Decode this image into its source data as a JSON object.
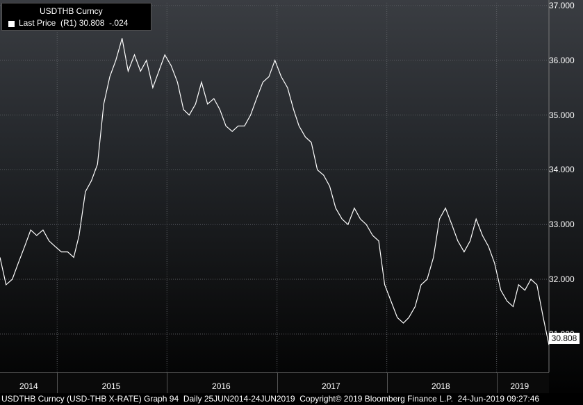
{
  "legend": {
    "title": "USDTHB Curncy",
    "row": "Last Price  (R1) 30.808  -.024"
  },
  "last_value_label": "30.808",
  "footer": "USDTHB Curncy (USD-THB X-RATE) Graph 94  Daily 25JUN2014-24JUN2019  Copyright© 2019 Bloomberg Finance L.P.  24-Jun-2019 09:27:46",
  "colors": {
    "line": "#ffffff",
    "background_top": "#3a3d42",
    "background_bottom": "#000000"
  },
  "chart_data": {
    "type": "line",
    "title": "USDTHB Curncy",
    "series": [
      {
        "name": "Last Price",
        "x": [
          "2014-06-25",
          "2014-07-15",
          "2014-08-05",
          "2014-08-25",
          "2014-09-15",
          "2014-10-05",
          "2014-10-25",
          "2014-11-15",
          "2014-12-05",
          "2014-12-25",
          "2015-01-15",
          "2015-02-05",
          "2015-02-25",
          "2015-03-15",
          "2015-04-05",
          "2015-04-25",
          "2015-05-15",
          "2015-06-05",
          "2015-06-25",
          "2015-07-15",
          "2015-08-05",
          "2015-08-25",
          "2015-09-15",
          "2015-10-05",
          "2015-10-25",
          "2015-11-15",
          "2015-12-05",
          "2015-12-25",
          "2016-01-15",
          "2016-02-05",
          "2016-02-25",
          "2016-03-15",
          "2016-04-05",
          "2016-04-25",
          "2016-05-15",
          "2016-06-05",
          "2016-06-25",
          "2016-07-15",
          "2016-08-05",
          "2016-08-25",
          "2016-09-15",
          "2016-10-05",
          "2016-10-25",
          "2016-11-15",
          "2016-12-05",
          "2016-12-25",
          "2017-01-15",
          "2017-02-05",
          "2017-02-25",
          "2017-03-15",
          "2017-04-05",
          "2017-04-25",
          "2017-05-15",
          "2017-06-05",
          "2017-06-25",
          "2017-07-15",
          "2017-08-05",
          "2017-08-25",
          "2017-09-15",
          "2017-10-05",
          "2017-10-25",
          "2017-11-15",
          "2017-12-05",
          "2017-12-25",
          "2018-01-15",
          "2018-02-05",
          "2018-02-25",
          "2018-03-15",
          "2018-04-05",
          "2018-04-25",
          "2018-05-15",
          "2018-06-05",
          "2018-06-25",
          "2018-07-15",
          "2018-08-05",
          "2018-08-25",
          "2018-09-15",
          "2018-10-05",
          "2018-10-25",
          "2018-11-15",
          "2018-12-05",
          "2018-12-25",
          "2019-01-15",
          "2019-02-05",
          "2019-02-25",
          "2019-03-15",
          "2019-04-05",
          "2019-04-25",
          "2019-05-15",
          "2019-06-05",
          "2019-06-24"
        ],
        "values": [
          32.4,
          31.9,
          32.0,
          32.3,
          32.6,
          32.9,
          32.8,
          32.9,
          32.7,
          32.6,
          32.5,
          32.5,
          32.4,
          32.8,
          33.6,
          33.8,
          34.1,
          35.2,
          35.7,
          36.0,
          36.4,
          35.8,
          36.1,
          35.8,
          36.0,
          35.5,
          35.8,
          36.1,
          35.9,
          35.6,
          35.1,
          35.0,
          35.2,
          35.6,
          35.2,
          35.3,
          35.1,
          34.8,
          34.7,
          34.8,
          34.8,
          35.0,
          35.3,
          35.6,
          35.7,
          36.0,
          35.7,
          35.5,
          35.1,
          34.8,
          34.6,
          34.5,
          34.0,
          33.9,
          33.7,
          33.3,
          33.1,
          33.0,
          33.3,
          33.1,
          33.0,
          32.8,
          32.7,
          31.9,
          31.6,
          31.3,
          31.2,
          31.3,
          31.5,
          31.9,
          32.0,
          32.4,
          33.1,
          33.3,
          33.0,
          32.7,
          32.5,
          32.7,
          33.1,
          32.8,
          32.6,
          32.3,
          31.8,
          31.6,
          31.5,
          31.9,
          31.8,
          32.0,
          31.9,
          31.3,
          30.8
        ]
      }
    ],
    "xlim": [
      "2014-06-25",
      "2019-06-24"
    ],
    "ylim": [
      30.3,
      37.05
    ],
    "yticks": [
      "31.000",
      "32.000",
      "33.000",
      "34.000",
      "35.000",
      "36.000",
      "37.000"
    ],
    "xticks": [
      {
        "label": "2014",
        "date": "2014-09-30"
      },
      {
        "label": "2015",
        "date": "2015-07-01"
      },
      {
        "label": "2016",
        "date": "2016-07-01"
      },
      {
        "label": "2017",
        "date": "2017-07-01"
      },
      {
        "label": "2018",
        "date": "2018-07-01"
      },
      {
        "label": "2019",
        "date": "2019-03-20"
      }
    ],
    "year_boundaries": [
      "2015-01-01",
      "2016-01-01",
      "2017-01-01",
      "2018-01-01",
      "2019-01-01"
    ],
    "grid": true,
    "legend_position": "top-left"
  }
}
